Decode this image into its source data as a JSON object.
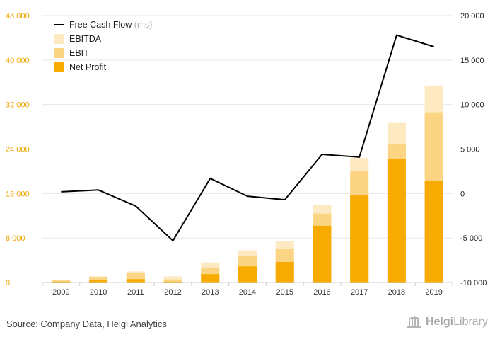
{
  "colors": {
    "net_profit": "#f7ab00",
    "ebit": "#fbd584",
    "ebitda": "#fde9c2",
    "fcf_line": "#000000",
    "left_axis_text": "#f0a500",
    "grid": "#e6e6e6"
  },
  "chart_data": {
    "type": "bar",
    "categories": [
      "2009",
      "2010",
      "2011",
      "2012",
      "2013",
      "2014",
      "2015",
      "2016",
      "2017",
      "2018",
      "2019"
    ],
    "series": [
      {
        "name": "Net Profit",
        "values": [
          150,
          400,
          600,
          150,
          1500,
          2900,
          3700,
          10200,
          15700,
          22200,
          18300
        ]
      },
      {
        "name": "EBIT",
        "values": [
          350,
          1000,
          1700,
          550,
          2700,
          4800,
          6100,
          12400,
          20100,
          24900,
          30600
        ]
      },
      {
        "name": "EBITDA",
        "values": [
          400,
          1100,
          2000,
          1100,
          3600,
          5800,
          7500,
          14000,
          22400,
          28700,
          35400
        ]
      },
      {
        "name": "Free Cash Flow",
        "axis": "rhs",
        "values": [
          200,
          400,
          -1400,
          -5300,
          1700,
          -300,
          -700,
          4400,
          4100,
          17800,
          16500
        ]
      }
    ],
    "ylim": [
      0,
      48000
    ],
    "yticks": [
      "0",
      "8 000",
      "16 000",
      "24 000",
      "32 000",
      "40 000",
      "48 000"
    ],
    "ylim_right": [
      -10000,
      20000
    ],
    "yticks_right": [
      "-10 000",
      "-5 000",
      "0",
      "5 000",
      "10 000",
      "15 000",
      "20 000"
    ],
    "grid": true,
    "legend_position": "top-left",
    "legend": [
      {
        "label": "Free Cash Flow",
        "suffix": "(rhs)",
        "kind": "line",
        "color": "#000000"
      },
      {
        "label": "EBITDA",
        "kind": "box",
        "color": "#fde9c2"
      },
      {
        "label": "EBIT",
        "kind": "box",
        "color": "#fbd584"
      },
      {
        "label": "Net Profit",
        "kind": "box",
        "color": "#f7ab00"
      }
    ]
  },
  "source": "Source: Company Data, Helgi Analytics",
  "logo": {
    "bold": "Helgi",
    "rest": "Library",
    "icon": "helgi-library-logo"
  }
}
